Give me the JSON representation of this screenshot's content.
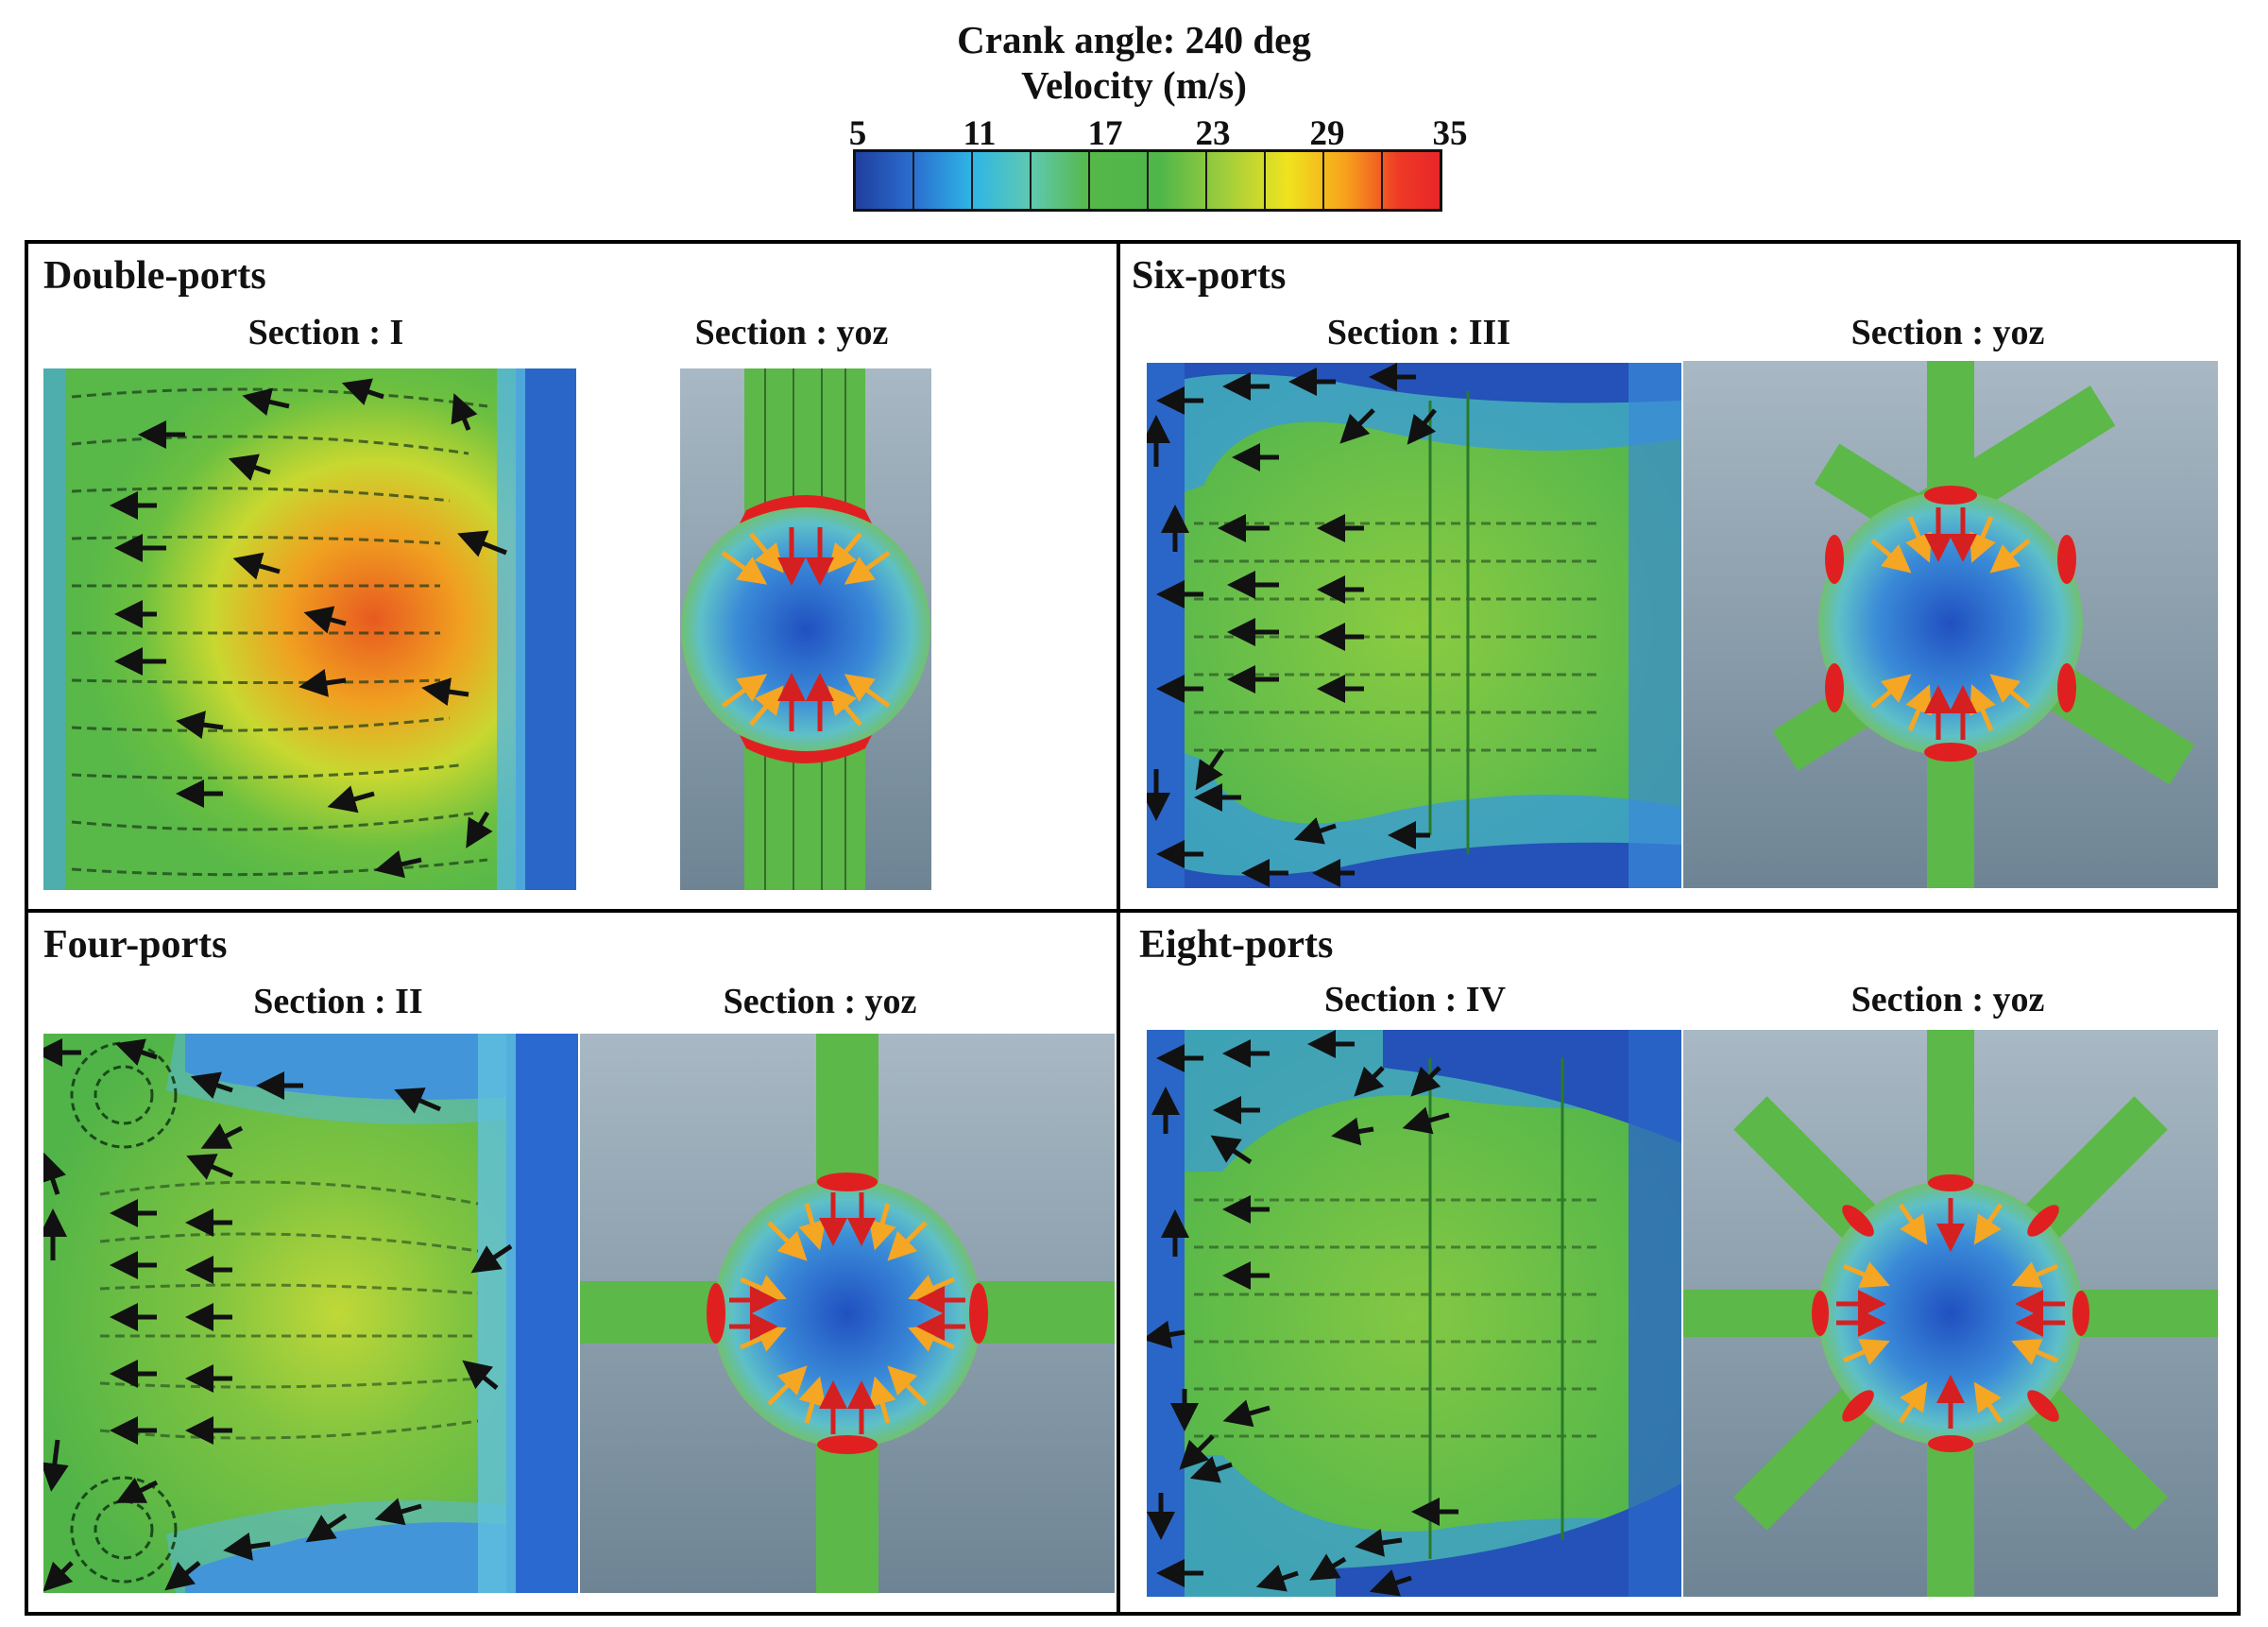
{
  "header": {
    "title_line1": "Crank angle: 240 deg",
    "title_line2": "Velocity (m/s)"
  },
  "colorbar": {
    "ticks": [
      "5",
      "11",
      "17",
      "23",
      "29",
      "35"
    ],
    "colors": [
      "#1f3f9e",
      "#2fb6e6",
      "#55b848",
      "#f0e31e",
      "#f7a11c",
      "#e8262a"
    ]
  },
  "panels": [
    {
      "title": "Double-ports",
      "left_section": "Section : I",
      "right_section": "Section : yoz"
    },
    {
      "title": "Six-ports",
      "left_section": "Section : III",
      "right_section": "Section : yoz"
    },
    {
      "title": "Four-ports",
      "left_section": "Section : II",
      "right_section": "Section : yoz"
    },
    {
      "title": "Eight-ports",
      "left_section": "Section : IV",
      "right_section": "Section : yoz"
    }
  ],
  "arrow_colors": {
    "black": "#111111",
    "orange": "#f5a623",
    "red": "#d42020"
  }
}
